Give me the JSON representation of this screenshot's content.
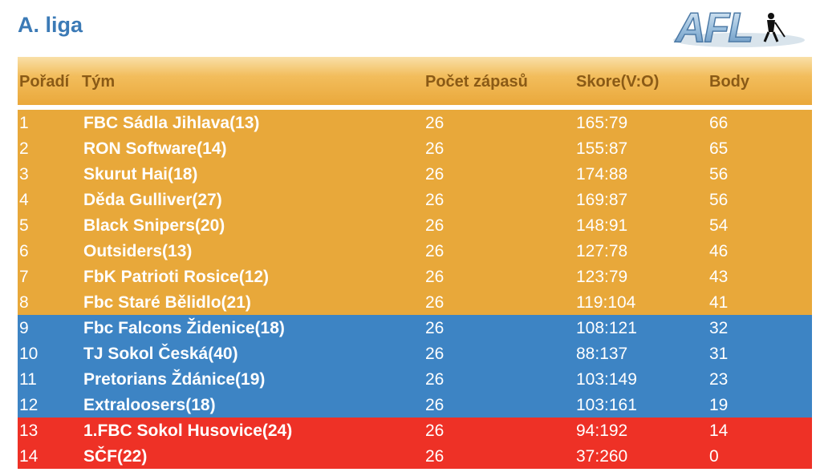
{
  "page": {
    "title": "A. liga"
  },
  "logo": {
    "text": "AFL",
    "icon": "afl-logo-icon"
  },
  "table": {
    "headers": {
      "rank": "Pořadí",
      "team": "Tým",
      "games": "Počet zápasů",
      "score": "Skore(V:O)",
      "points": "Body"
    },
    "zone_colors": {
      "promotion": "#e8a83a",
      "middle": "#3d84c4",
      "relegation": "#ee3126"
    },
    "rows": [
      {
        "rank": "1",
        "team": "FBC Sádla Jihlava(13)",
        "games": "26",
        "score": "165:79",
        "points": "66",
        "zone": "promotion"
      },
      {
        "rank": "2",
        "team": "RON Software(14)",
        "games": "26",
        "score": "155:87",
        "points": "65",
        "zone": "promotion"
      },
      {
        "rank": "3",
        "team": "Skurut Hai(18)",
        "games": "26",
        "score": "174:88",
        "points": "56",
        "zone": "promotion"
      },
      {
        "rank": "4",
        "team": "Děda Gulliver(27)",
        "games": "26",
        "score": "169:87",
        "points": "56",
        "zone": "promotion"
      },
      {
        "rank": "5",
        "team": "Black Snipers(20)",
        "games": "26",
        "score": "148:91",
        "points": "54",
        "zone": "promotion"
      },
      {
        "rank": "6",
        "team": "Outsiders(13)",
        "games": "26",
        "score": "127:78",
        "points": "46",
        "zone": "promotion"
      },
      {
        "rank": "7",
        "team": "FbK Patrioti Rosice(12)",
        "games": "26",
        "score": "123:79",
        "points": "43",
        "zone": "promotion"
      },
      {
        "rank": "8",
        "team": "Fbc Staré Bělidlo(21)",
        "games": "26",
        "score": "119:104",
        "points": "41",
        "zone": "promotion"
      },
      {
        "rank": "9",
        "team": "Fbc Falcons Židenice(18)",
        "games": "26",
        "score": "108:121",
        "points": "32",
        "zone": "middle"
      },
      {
        "rank": "10",
        "team": "TJ Sokol Česká(40)",
        "games": "26",
        "score": "88:137",
        "points": "31",
        "zone": "middle"
      },
      {
        "rank": "11",
        "team": "Pretorians Ždánice(19)",
        "games": "26",
        "score": "103:149",
        "points": "23",
        "zone": "middle"
      },
      {
        "rank": "12",
        "team": "Extraloosers(18)",
        "games": "26",
        "score": "103:161",
        "points": "19",
        "zone": "middle"
      },
      {
        "rank": "13",
        "team": "1.FBC Sokol Husovice(24)",
        "games": "26",
        "score": "94:192",
        "points": "14",
        "zone": "relegation"
      },
      {
        "rank": "14",
        "team": "SČF(22)",
        "games": "26",
        "score": "37:260",
        "points": "0",
        "zone": "relegation"
      }
    ]
  }
}
